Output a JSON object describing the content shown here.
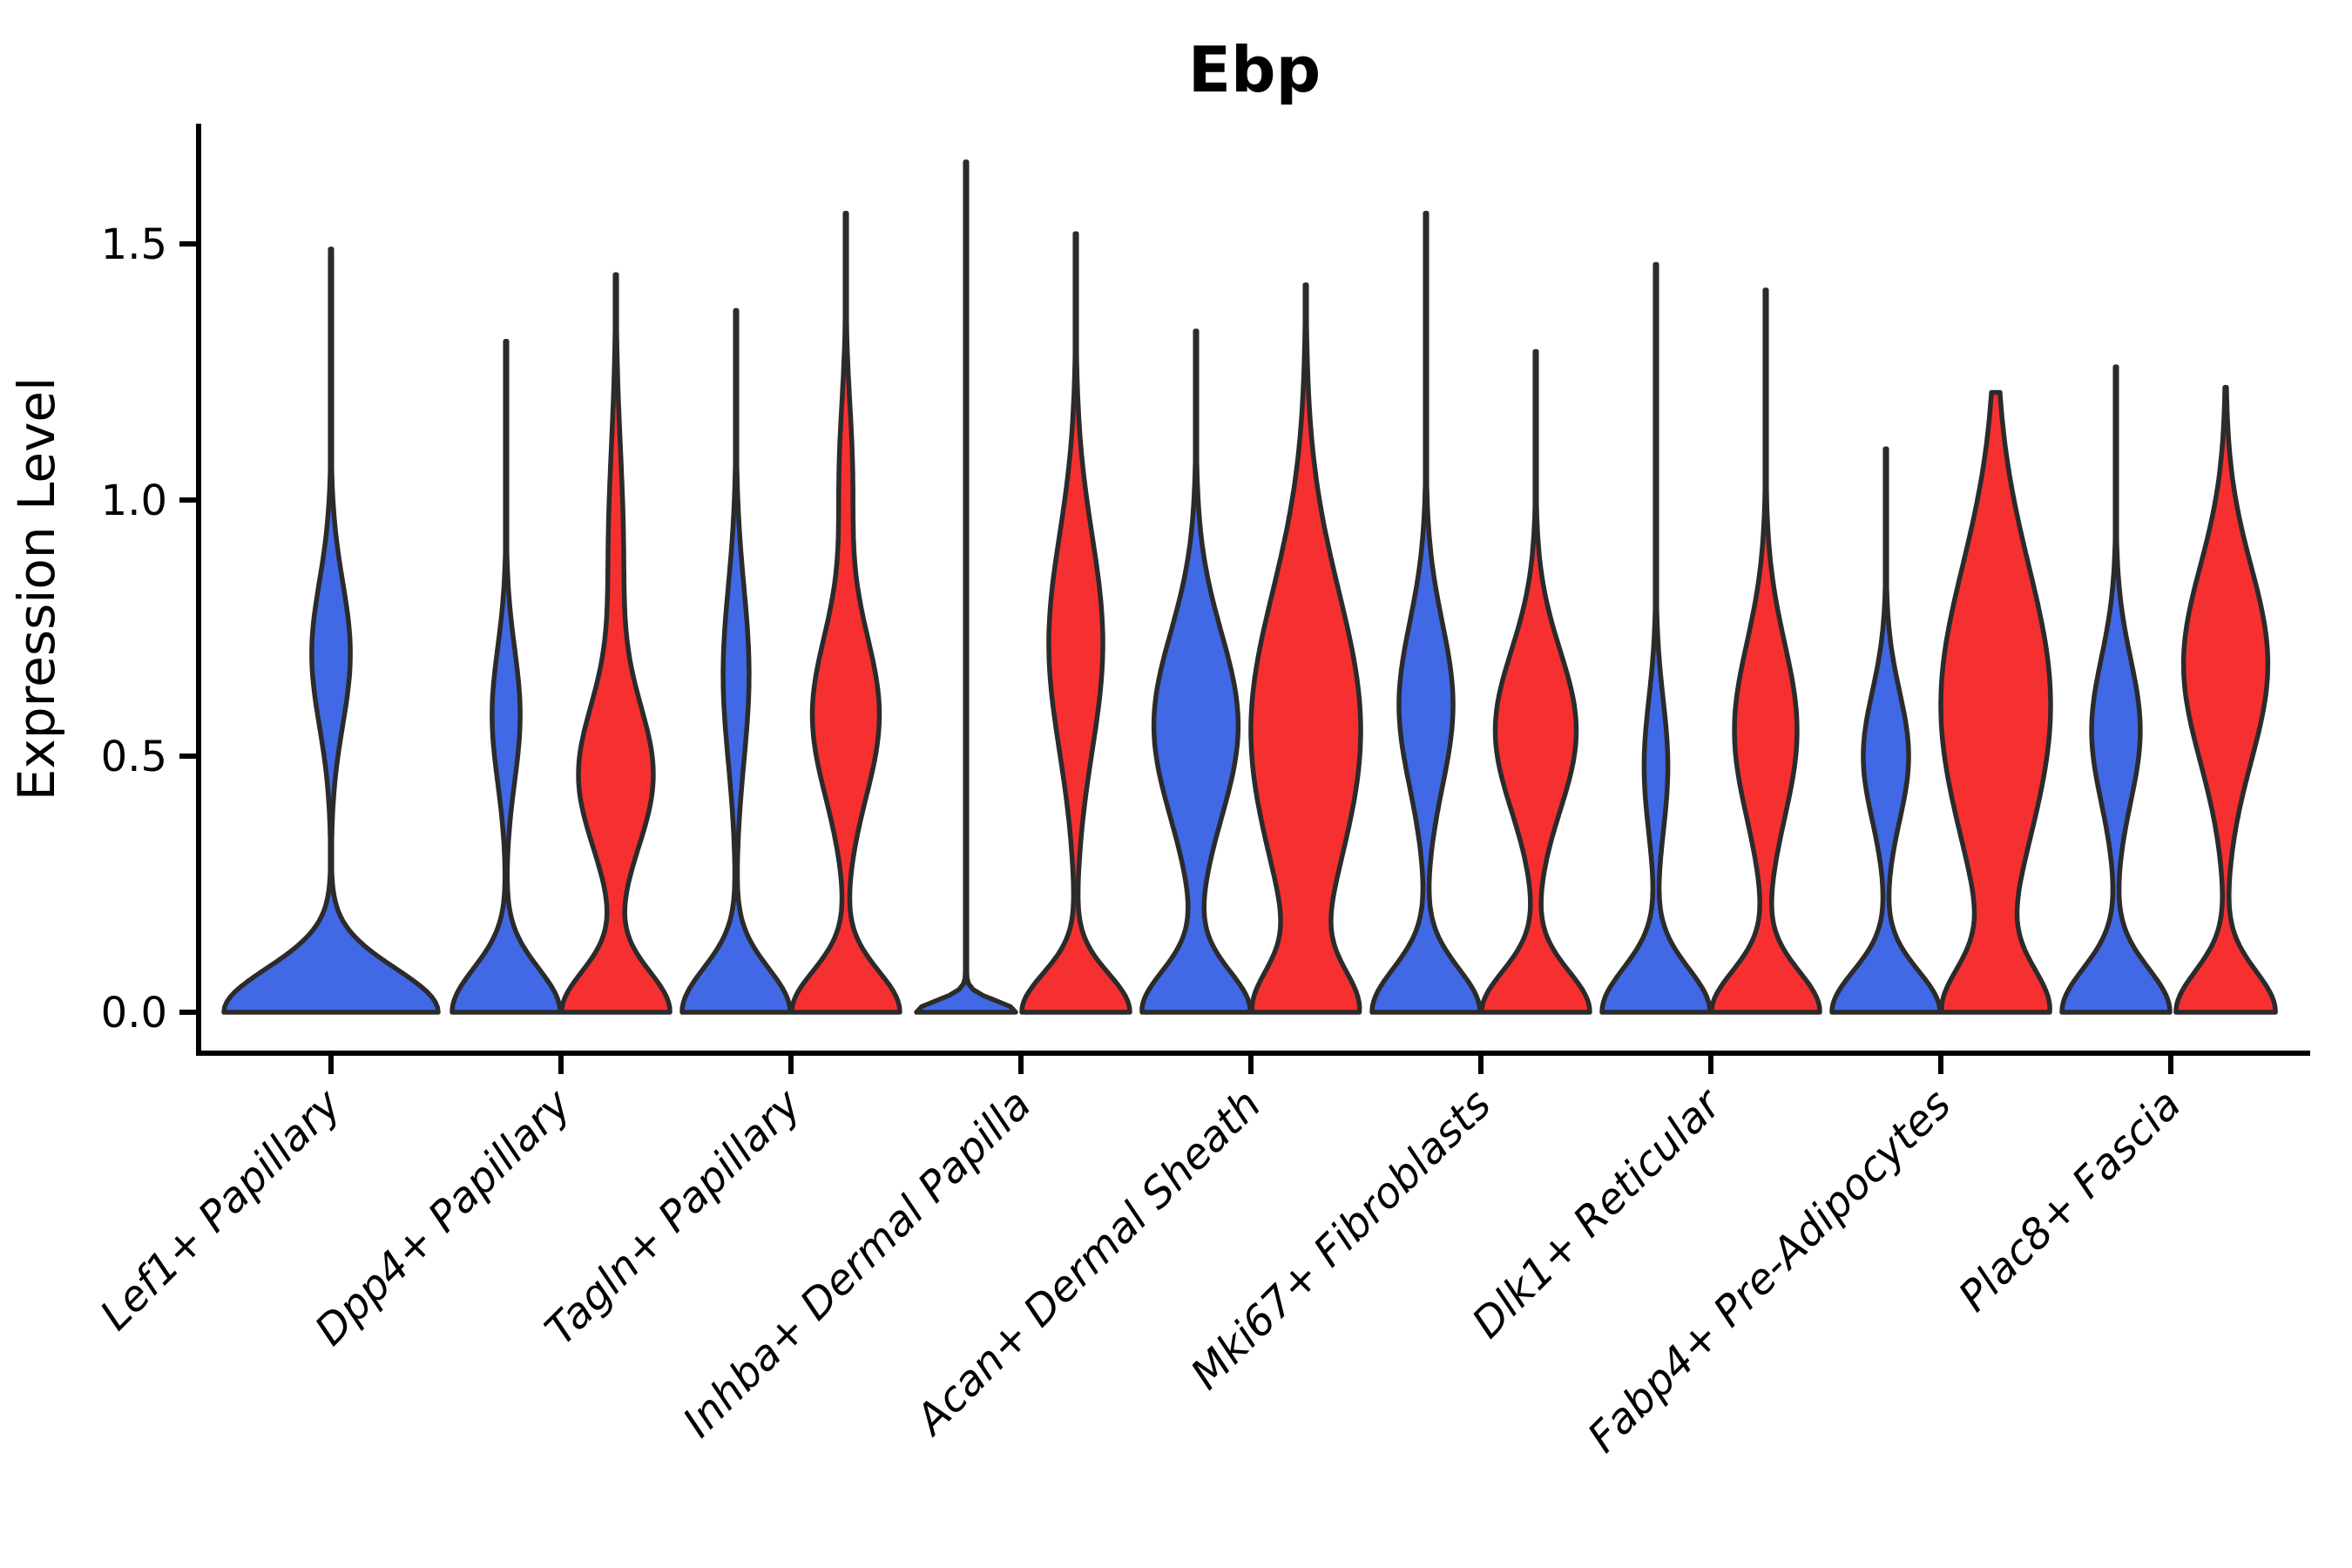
{
  "title": "Ebp",
  "colors": {
    "blue": "#4169E6",
    "red": "#F63030",
    "outline": "#2B2B2B",
    "axis": "#000000",
    "text": "#000000",
    "background": "#FFFFFF"
  },
  "chart_data": {
    "type": "violin",
    "title": "Ebp",
    "xlabel": "",
    "ylabel": "Expression Level",
    "ylim": [
      0,
      1.7
    ],
    "yticks": {
      "labels": [
        "0.0",
        "0.5",
        "1.0",
        "1.5"
      ],
      "values": [
        0.0,
        0.5,
        1.0,
        1.5
      ]
    },
    "grid": "off",
    "legend": "none",
    "xtick_rotation_degrees": 45,
    "categories": [
      "Lef1+ Papillary",
      "Dpp4+ Papillary",
      "Tagln+ Papillary",
      "Inhba+ Dermal Papilla",
      "Acan+ Dermal Sheath",
      "Mki67+ Fibroblasts",
      "Dlk1+ Reticular",
      "Fabp4+ Pre-Adipocytes",
      "Plac8+ Fascia"
    ],
    "violins": [
      {
        "category": "Lef1+ Papillary",
        "group_index": 0,
        "split": "blue",
        "full_width": true,
        "peak_value": 1.49,
        "half_width": 123,
        "profile": [
          {
            "mu": 0.0,
            "sigma": 0.085,
            "amp": 1.0
          },
          {
            "mu": 0.7,
            "sigma": 0.14,
            "amp": 0.18
          }
        ]
      },
      {
        "category": "Dpp4+ Papillary",
        "group_index": 1,
        "split": "blue",
        "full_width": false,
        "peak_value": 1.31,
        "half_width": 62,
        "profile": [
          {
            "mu": 0.0,
            "sigma": 0.085,
            "amp": 1.0
          },
          {
            "mu": 0.58,
            "sigma": 0.13,
            "amp": 0.26
          }
        ]
      },
      {
        "category": "Dpp4+ Papillary",
        "group_index": 1,
        "split": "red",
        "full_width": false,
        "peak_value": 1.44,
        "half_width": 62,
        "profile": [
          {
            "mu": 0.0,
            "sigma": 0.08,
            "amp": 1.0
          },
          {
            "mu": 0.46,
            "sigma": 0.14,
            "amp": 0.68
          },
          {
            "mu": 0.9,
            "sigma": 0.2,
            "amp": 0.14
          }
        ]
      },
      {
        "category": "Tagln+ Papillary",
        "group_index": 2,
        "split": "blue",
        "full_width": false,
        "peak_value": 1.37,
        "half_width": 62,
        "profile": [
          {
            "mu": 0.0,
            "sigma": 0.085,
            "amp": 1.0
          },
          {
            "mu": 0.66,
            "sigma": 0.17,
            "amp": 0.24
          }
        ]
      },
      {
        "category": "Tagln+ Papillary",
        "group_index": 2,
        "split": "red",
        "full_width": false,
        "peak_value": 1.56,
        "half_width": 62,
        "profile": [
          {
            "mu": 0.0,
            "sigma": 0.08,
            "amp": 1.0
          },
          {
            "mu": 0.58,
            "sigma": 0.16,
            "amp": 0.62
          },
          {
            "mu": 1.05,
            "sigma": 0.14,
            "amp": 0.12
          }
        ]
      },
      {
        "category": "Inhba+ Dermal Papilla",
        "group_index": 3,
        "split": "blue",
        "full_width": false,
        "peak_value": 1.66,
        "half_width": 57,
        "profile": [
          {
            "mu": 0.0,
            "sigma": 0.022,
            "amp": 1.0
          },
          {
            "mu": 0.8,
            "sigma": 2.0,
            "amp": 0.012
          }
        ]
      },
      {
        "category": "Inhba+ Dermal Papilla",
        "group_index": 3,
        "split": "red",
        "full_width": false,
        "peak_value": 1.52,
        "half_width": 62,
        "profile": [
          {
            "mu": 0.0,
            "sigma": 0.075,
            "amp": 1.0
          },
          {
            "mu": 0.72,
            "sigma": 0.21,
            "amp": 0.5
          }
        ]
      },
      {
        "category": "Acan+ Dermal Sheath",
        "group_index": 4,
        "split": "blue",
        "full_width": false,
        "peak_value": 1.33,
        "half_width": 62,
        "profile": [
          {
            "mu": 0.0,
            "sigma": 0.08,
            "amp": 1.0
          },
          {
            "mu": 0.56,
            "sigma": 0.18,
            "amp": 0.78
          }
        ]
      },
      {
        "category": "Acan+ Dermal Sheath",
        "group_index": 4,
        "split": "red",
        "full_width": false,
        "peak_value": 1.42,
        "half_width": 63,
        "profile": [
          {
            "mu": 0.0,
            "sigma": 0.08,
            "amp": 0.85
          },
          {
            "mu": 0.55,
            "sigma": 0.27,
            "amp": 1.0
          }
        ]
      },
      {
        "category": "Mki67+ Fibroblasts",
        "group_index": 5,
        "split": "blue",
        "full_width": false,
        "peak_value": 1.56,
        "half_width": 62,
        "profile": [
          {
            "mu": 0.0,
            "sigma": 0.085,
            "amp": 1.0
          },
          {
            "mu": 0.6,
            "sigma": 0.16,
            "amp": 0.5
          }
        ]
      },
      {
        "category": "Mki67+ Fibroblasts",
        "group_index": 5,
        "split": "red",
        "full_width": false,
        "peak_value": 1.29,
        "half_width": 62,
        "profile": [
          {
            "mu": 0.0,
            "sigma": 0.08,
            "amp": 1.0
          },
          {
            "mu": 0.55,
            "sigma": 0.155,
            "amp": 0.75
          }
        ]
      },
      {
        "category": "Dlk1+ Reticular",
        "group_index": 6,
        "split": "blue",
        "full_width": false,
        "peak_value": 1.46,
        "half_width": 62,
        "profile": [
          {
            "mu": 0.0,
            "sigma": 0.085,
            "amp": 1.0
          },
          {
            "mu": 0.48,
            "sigma": 0.13,
            "amp": 0.22
          }
        ]
      },
      {
        "category": "Dlk1+ Reticular",
        "group_index": 6,
        "split": "red",
        "full_width": false,
        "peak_value": 1.41,
        "half_width": 62,
        "profile": [
          {
            "mu": 0.0,
            "sigma": 0.08,
            "amp": 1.0
          },
          {
            "mu": 0.55,
            "sigma": 0.17,
            "amp": 0.58
          }
        ]
      },
      {
        "category": "Fabp4+ Pre-Adipocytes",
        "group_index": 7,
        "split": "blue",
        "full_width": false,
        "peak_value": 1.1,
        "half_width": 62,
        "profile": [
          {
            "mu": 0.0,
            "sigma": 0.08,
            "amp": 1.0
          },
          {
            "mu": 0.5,
            "sigma": 0.125,
            "amp": 0.42
          }
        ]
      },
      {
        "category": "Fabp4+ Pre-Adipocytes",
        "group_index": 7,
        "split": "red",
        "full_width": false,
        "peak_value": 1.21,
        "half_width": 63,
        "profile": [
          {
            "mu": 0.0,
            "sigma": 0.085,
            "amp": 0.9
          },
          {
            "mu": 0.6,
            "sigma": 0.27,
            "amp": 1.0
          }
        ]
      },
      {
        "category": "Plac8+ Fascia",
        "group_index": 8,
        "split": "blue",
        "full_width": false,
        "peak_value": 1.26,
        "half_width": 62,
        "profile": [
          {
            "mu": 0.0,
            "sigma": 0.085,
            "amp": 1.0
          },
          {
            "mu": 0.55,
            "sigma": 0.14,
            "amp": 0.45
          }
        ]
      },
      {
        "category": "Plac8+ Fascia",
        "group_index": 8,
        "split": "red",
        "full_width": false,
        "peak_value": 1.22,
        "half_width": 62,
        "profile": [
          {
            "mu": 0.0,
            "sigma": 0.08,
            "amp": 0.92
          },
          {
            "mu": 0.68,
            "sigma": 0.19,
            "amp": 0.78
          }
        ]
      }
    ]
  }
}
